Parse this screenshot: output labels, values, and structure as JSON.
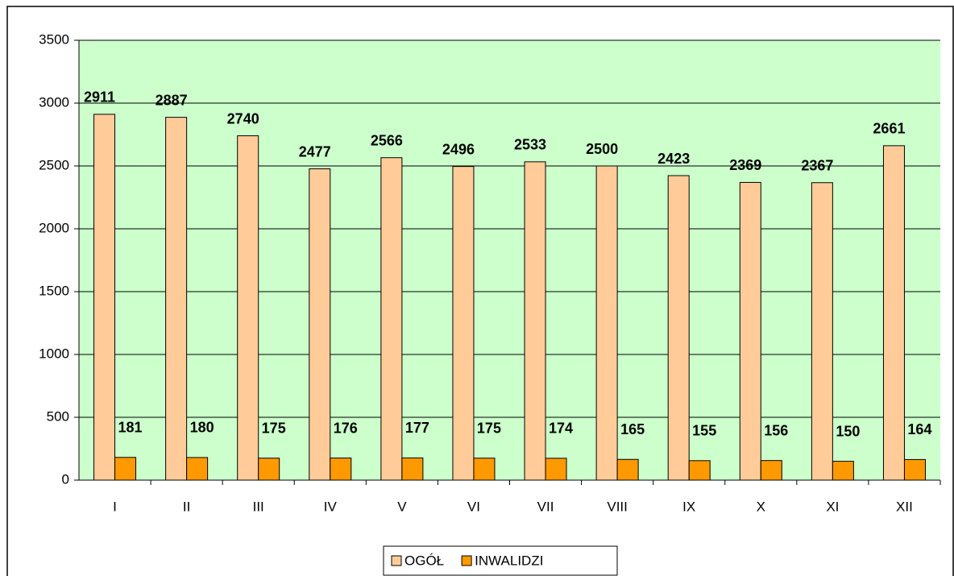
{
  "chart_data": {
    "type": "bar",
    "categories": [
      "I",
      "II",
      "III",
      "IV",
      "V",
      "VI",
      "VII",
      "VIII",
      "IX",
      "X",
      "XI",
      "XII"
    ],
    "series": [
      {
        "name": "OGÓŁ",
        "color": "#ffcc99",
        "values": [
          2911,
          2887,
          2740,
          2477,
          2566,
          2496,
          2533,
          2500,
          2423,
          2369,
          2367,
          2661
        ]
      },
      {
        "name": "INWALIDZI",
        "color": "#ff9900",
        "values": [
          181,
          180,
          175,
          176,
          177,
          175,
          174,
          165,
          155,
          156,
          150,
          164
        ]
      }
    ],
    "ylim": [
      0,
      3500
    ],
    "yticks": [
      0,
      500,
      1000,
      1500,
      2000,
      2500,
      3000,
      3500
    ],
    "grid": true,
    "legend": "bottom",
    "plot_background": "#ccffcc"
  }
}
